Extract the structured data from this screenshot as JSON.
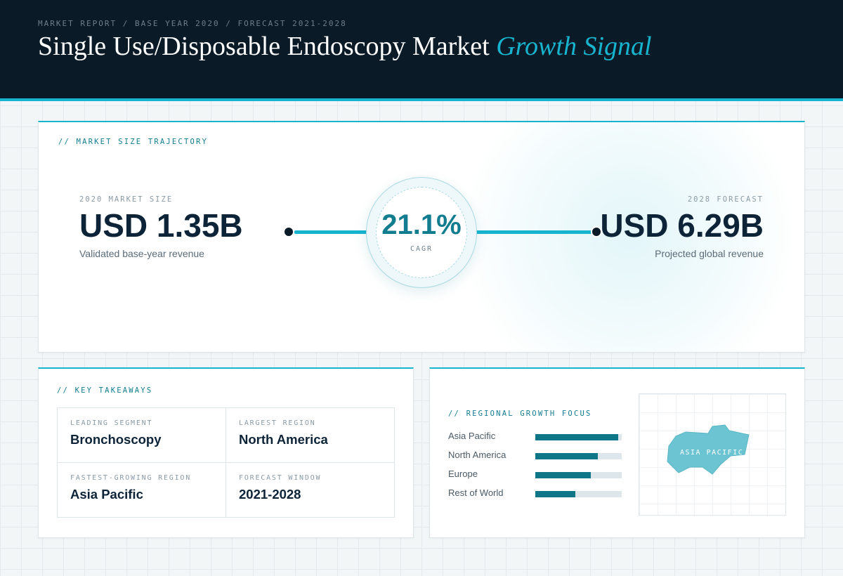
{
  "header": {
    "breadcrumb": "MARKET REPORT / BASE YEAR 2020 / FORECAST 2021-2028",
    "title_main": "Single Use/Disposable Endoscopy Market ",
    "title_accent": "Growth Signal"
  },
  "trajectory": {
    "label": "// MARKET SIZE TRAJECTORY",
    "start": {
      "label": "2020 MARKET SIZE",
      "value": "USD 1.35B",
      "sub": "Validated base-year revenue"
    },
    "cagr": {
      "value": "21.1%",
      "label": "CAGR"
    },
    "end": {
      "label": "2028 FORECAST",
      "value": "USD 6.29B",
      "sub": "Projected global revenue"
    }
  },
  "takeaways": {
    "label": "// KEY TAKEAWAYS",
    "items": [
      {
        "label": "LEADING SEGMENT",
        "value": "Bronchoscopy"
      },
      {
        "label": "LARGEST REGION",
        "value": "North America"
      },
      {
        "label": "FASTEST-GROWING REGION",
        "value": "Asia Pacific"
      },
      {
        "label": "FORECAST WINDOW",
        "value": "2021-2028"
      }
    ]
  },
  "regional": {
    "label": "// REGIONAL GROWTH FOCUS",
    "regions": [
      {
        "name": "Asia Pacific",
        "level": 0.96
      },
      {
        "name": "North America",
        "level": 0.72
      },
      {
        "name": "Europe",
        "level": 0.64
      },
      {
        "name": "Rest of World",
        "level": 0.46
      }
    ],
    "map_label": "ASIA PACIFIC"
  },
  "colors": {
    "accent": "#17b4d0",
    "bar": "#0e7686",
    "header_bg": "#0b1a27",
    "map_fill": "#6cc4d2"
  }
}
